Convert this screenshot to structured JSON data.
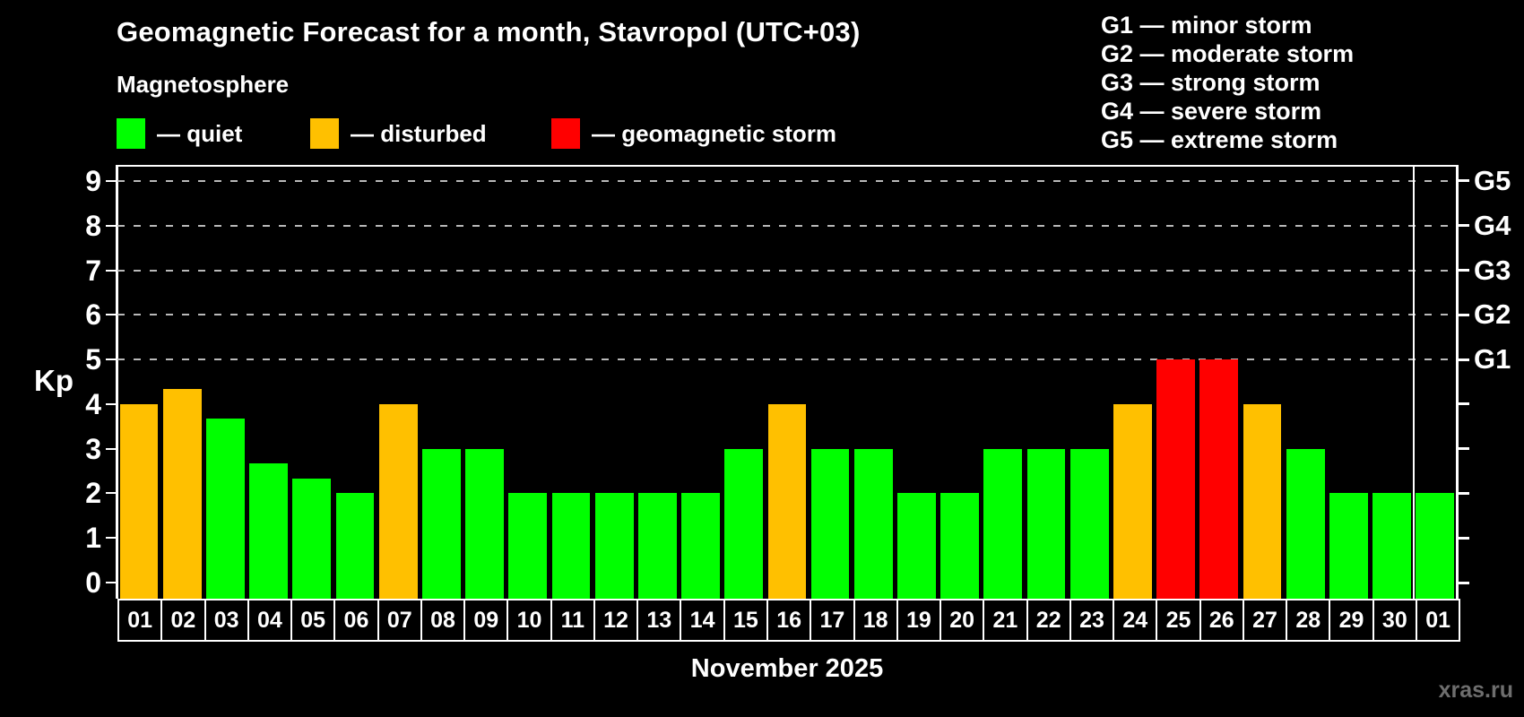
{
  "header": {
    "title": "Geomagnetic Forecast for a month, Stavropol (UTC+03)",
    "subtitle": "Magnetosphere"
  },
  "legend": {
    "items": [
      {
        "name": "quiet",
        "label": "— quiet",
        "color": "#00ff00"
      },
      {
        "name": "disturbed",
        "label": "— disturbed",
        "color": "#ffc000"
      },
      {
        "name": "storm",
        "label": "— geomagnetic storm",
        "color": "#ff0000"
      }
    ]
  },
  "g_legend": {
    "rows": [
      "G1 — minor storm",
      "G2 — moderate storm",
      "G3 — strong storm",
      "G4 — severe storm",
      "G5 — extreme storm"
    ]
  },
  "axes": {
    "y_title": "Kp",
    "y_ticks": [
      0,
      1,
      2,
      3,
      4,
      5,
      6,
      7,
      8,
      9
    ],
    "x_title": "November 2025"
  },
  "footer": {
    "watermark": "xras.ru"
  },
  "chart_data": {
    "type": "bar",
    "title": "Geomagnetic Forecast for a month, Stavropol (UTC+03)",
    "subtitle": "Magnetosphere",
    "xlabel": "November 2025",
    "ylabel": "Kp",
    "ylim": [
      0,
      9
    ],
    "categories": [
      "01",
      "02",
      "03",
      "04",
      "05",
      "06",
      "07",
      "08",
      "09",
      "10",
      "11",
      "12",
      "13",
      "14",
      "15",
      "16",
      "17",
      "18",
      "19",
      "20",
      "21",
      "22",
      "23",
      "24",
      "25",
      "26",
      "27",
      "28",
      "29",
      "30",
      "01"
    ],
    "values": [
      4,
      4.33,
      3.67,
      2.67,
      2.33,
      2,
      4,
      3,
      3,
      2,
      2,
      2,
      2,
      2,
      3,
      4,
      3,
      3,
      2,
      2,
      3,
      3,
      3,
      4,
      5,
      5,
      4,
      3,
      2,
      2,
      2
    ],
    "statuses": [
      "disturbed",
      "disturbed",
      "quiet",
      "quiet",
      "quiet",
      "quiet",
      "disturbed",
      "quiet",
      "quiet",
      "quiet",
      "quiet",
      "quiet",
      "quiet",
      "quiet",
      "quiet",
      "disturbed",
      "quiet",
      "quiet",
      "quiet",
      "quiet",
      "quiet",
      "quiet",
      "quiet",
      "disturbed",
      "storm",
      "storm",
      "disturbed",
      "quiet",
      "quiet",
      "quiet",
      "quiet"
    ],
    "status_colors": {
      "quiet": "#00ff00",
      "disturbed": "#ffc000",
      "storm": "#ff0000"
    },
    "grid_levels": [
      {
        "kp": 5,
        "label": "G1"
      },
      {
        "kp": 6,
        "label": "G2"
      },
      {
        "kp": 7,
        "label": "G3"
      },
      {
        "kp": 8,
        "label": "G4"
      },
      {
        "kp": 9,
        "label": "G5"
      }
    ],
    "month_divider_after_index": 29,
    "legend_position": "top",
    "grid": "dashed-horizontal-storm-levels-only"
  }
}
